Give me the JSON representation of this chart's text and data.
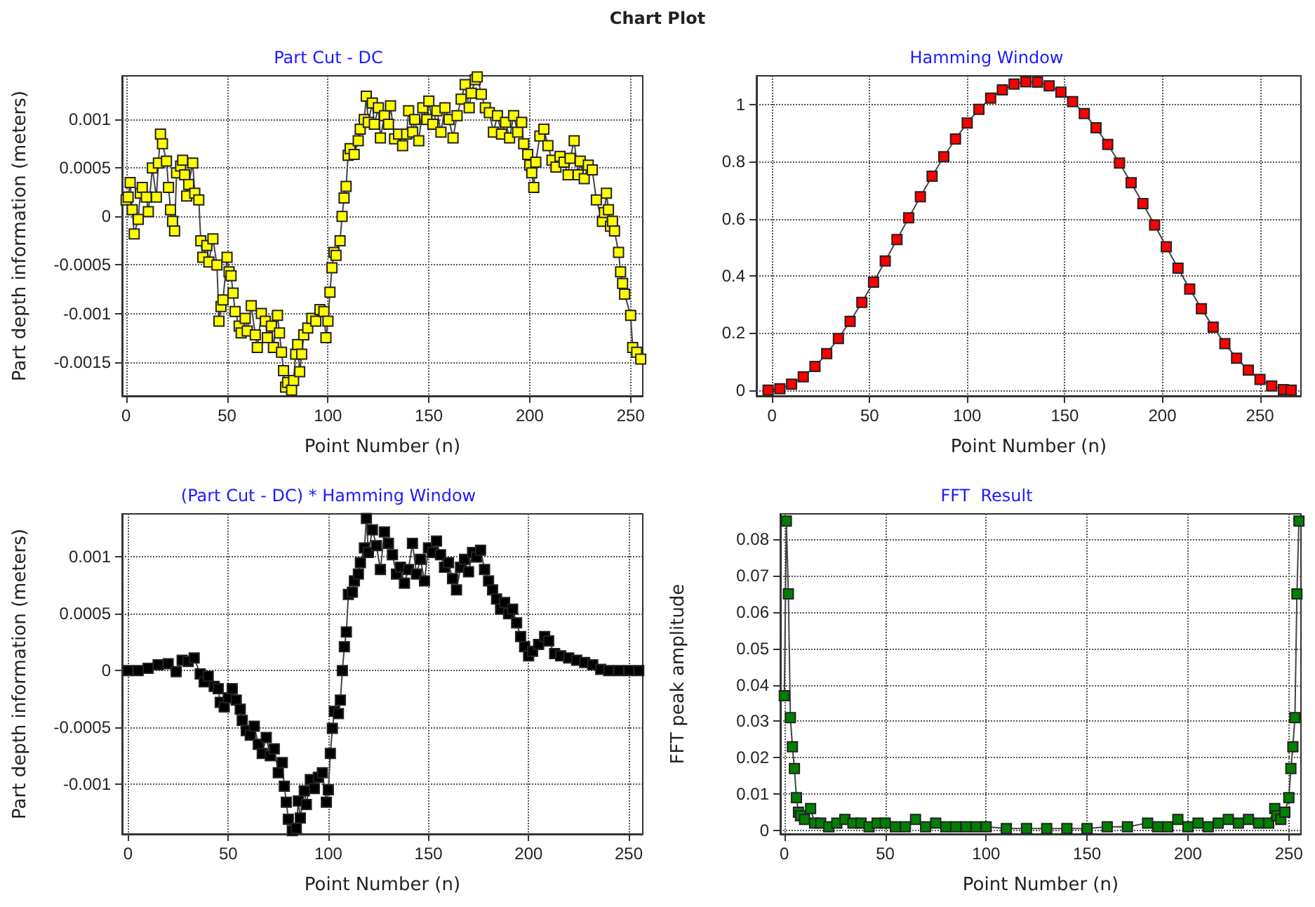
{
  "chart_data": [
    {
      "type": "line",
      "title": "Part Cut - DC",
      "xlabel": "Point Number (n)",
      "ylabel": "Part depth information (meters)",
      "annotations": [
        "Chart Plot"
      ],
      "marker": "square",
      "line_style": "solid",
      "grid": true,
      "xlim": [
        -2,
        256
      ],
      "xticks": [
        0,
        50,
        100,
        150,
        200,
        250
      ],
      "ylim": [
        -0.00185,
        0.00145
      ],
      "yticks": [
        -0.0015,
        -0.001,
        -0.0005,
        0,
        0.0005,
        0.001
      ],
      "series": [
        {
          "color": "#ffff00",
          "x": [
            0,
            1,
            2,
            3,
            4,
            6,
            7,
            8,
            10,
            11,
            13,
            15,
            16,
            17,
            18,
            20,
            21,
            22,
            23,
            24,
            25,
            27,
            28,
            29,
            30,
            31,
            33,
            34,
            36,
            37,
            38,
            40,
            41,
            43,
            45,
            46,
            47,
            48,
            50,
            51,
            52,
            53,
            54,
            56,
            57,
            59,
            60,
            62,
            64,
            65,
            67,
            69,
            70,
            72,
            73,
            75,
            76,
            77,
            78,
            79,
            80,
            82,
            83,
            84,
            85,
            86,
            87,
            88,
            90,
            92,
            94,
            96,
            98,
            99,
            100,
            101,
            102,
            103,
            104,
            106,
            107,
            108,
            109,
            110,
            111,
            113,
            115,
            116,
            118,
            119,
            120,
            122,
            123,
            125,
            126,
            128,
            130,
            131,
            133,
            135,
            137,
            139,
            140,
            142,
            143,
            145,
            147,
            149,
            150,
            152,
            154,
            156,
            158,
            160,
            162,
            164,
            166,
            168,
            170,
            171,
            173,
            174,
            176,
            178,
            180,
            182,
            184,
            186,
            188,
            190,
            192,
            194,
            196,
            197,
            199,
            200,
            201,
            202,
            203,
            205,
            207,
            209,
            211,
            213,
            215,
            217,
            219,
            220,
            222,
            224,
            225,
            227,
            229,
            231,
            233,
            236,
            237,
            238,
            239,
            240,
            241,
            242,
            244,
            245,
            246,
            247,
            250,
            251,
            253,
            255
          ],
          "values": [
            0.00017,
            0.0002,
            0.00035,
            7e-05,
            -0.00018,
            -3e-05,
            0.00024,
            0.0003,
            0.0002,
            5e-05,
            0.0005,
            0.0002,
            0.00055,
            0.00085,
            0.00075,
            0.00057,
            0.0003,
            7e-05,
            -5e-05,
            -0.00015,
            0.00045,
            0.00052,
            0.00058,
            0.00043,
            0.00021,
            0.00033,
            0.00055,
            0.00024,
            0.00017,
            -0.00025,
            -0.00042,
            -0.0003,
            -0.00047,
            -0.00023,
            -0.0005,
            -0.00108,
            -0.00093,
            -0.00086,
            -0.00042,
            -0.00057,
            -0.00061,
            -0.00079,
            -0.00098,
            -0.00113,
            -0.0012,
            -0.00105,
            -0.00118,
            -0.00092,
            -0.00122,
            -0.00135,
            -0.001,
            -0.00108,
            -0.00125,
            -0.00113,
            -0.00135,
            -0.00102,
            -0.0012,
            -0.0014,
            -0.00159,
            -0.00176,
            -0.00171,
            -0.00179,
            -0.00169,
            -0.00142,
            -0.00132,
            -0.0016,
            -0.00142,
            -0.00122,
            -0.00115,
            -0.00105,
            -0.00108,
            -0.00096,
            -0.00098,
            -0.00125,
            -0.00108,
            -0.00078,
            -0.00053,
            -0.00037,
            -0.0004,
            -0.00025,
            0,
            0.00019,
            0.00031,
            0.00063,
            0.0007,
            0.00064,
            0.00078,
            0.0009,
            0.001,
            0.00124,
            0.00097,
            0.00117,
            0.00095,
            0.00112,
            0.00081,
            0.00104,
            0.00095,
            0.00114,
            0.0008,
            0.00085,
            0.00073,
            0.00085,
            0.00109,
            0.00087,
            0.001,
            0.00078,
            0.00112,
            0.001,
            0.00119,
            0.00095,
            0.00109,
            0.00087,
            0.00112,
            0.001,
            0.00081,
            0.00104,
            0.00121,
            0.00136,
            0.00112,
            0.00127,
            0.00141,
            0.00144,
            0.00126,
            0.00112,
            0.00107,
            0.00087,
            0.00104,
            0.00085,
            0.00097,
            0.00081,
            0.00104,
            0.00087,
            0.00097,
            0.00075,
            0.00064,
            0.00053,
            0.00045,
            0.0003,
            0.00056,
            0.00083,
            0.0009,
            0.00073,
            0.00058,
            0.00051,
            0.00062,
            0.00056,
            0.00043,
            0.0006,
            0.00078,
            0.00043,
            0.00057,
            0.00039,
            0.00053,
            0.00048,
            0.00017,
            -5e-05,
            4e-05,
            0.00024,
            7e-05,
            -0.0001,
            -5e-05,
            -0.00015,
            -0.00037,
            -0.00057,
            -0.00069,
            -0.0008,
            -0.00102,
            -0.00135,
            -0.0014,
            -0.00147
          ]
        }
      ]
    },
    {
      "type": "line",
      "title": "Hamming Window",
      "xlabel": "Point Number (n)",
      "marker": "square",
      "line_style": "solid",
      "grid": true,
      "xlim": [
        -8,
        271
      ],
      "xticks": [
        0,
        50,
        100,
        150,
        200,
        250
      ],
      "ylim": [
        -0.02,
        1.1
      ],
      "yticks": [
        0,
        0.2,
        0.4,
        0.6,
        0.8,
        1
      ],
      "series": [
        {
          "color": "#ff0000",
          "x": [
            -2,
            4,
            10,
            16,
            22,
            28,
            34,
            40,
            46,
            52,
            58,
            64,
            70,
            76,
            82,
            88,
            94,
            100,
            106,
            112,
            118,
            124,
            130,
            136,
            142,
            148,
            154,
            160,
            166,
            172,
            178,
            184,
            190,
            196,
            202,
            208,
            214,
            220,
            226,
            232,
            238,
            244,
            250,
            256,
            262,
            266
          ],
          "values": [
            0,
            0.005,
            0.021,
            0.047,
            0.083,
            0.128,
            0.181,
            0.241,
            0.307,
            0.378,
            0.452,
            0.527,
            0.603,
            0.677,
            0.749,
            0.817,
            0.879,
            0.935,
            0.983,
            1.022,
            1.051,
            1.071,
            1.079,
            1.078,
            1.065,
            1.043,
            1.01,
            0.968,
            0.918,
            0.86,
            0.795,
            0.726,
            0.653,
            0.578,
            0.502,
            0.427,
            0.354,
            0.285,
            0.221,
            0.163,
            0.112,
            0.07,
            0.038,
            0.015,
            0.002,
            0
          ]
        }
      ]
    },
    {
      "type": "line",
      "title": "(Part Cut - DC) * Hamming Window",
      "xlabel": "Point Number (n)",
      "ylabel": "Part depth information (meters)",
      "marker": "square",
      "line_style": "solid",
      "grid": true,
      "xlim": [
        -3,
        257
      ],
      "xticks": [
        0,
        50,
        100,
        150,
        200,
        250
      ],
      "ylim": [
        -0.00144,
        0.00138
      ],
      "yticks": [
        -0.001,
        -0.0005,
        0,
        0.0005,
        0.001
      ],
      "series": [
        {
          "color": "#000000",
          "x": [
            0,
            5,
            10,
            15,
            20,
            24,
            27,
            30,
            33,
            36,
            38,
            40,
            43,
            45,
            46,
            48,
            50,
            52,
            54,
            56,
            57,
            59,
            61,
            63,
            65,
            67,
            69,
            71,
            73,
            75,
            77,
            78,
            79,
            80,
            82,
            84,
            85,
            86,
            88,
            89,
            91,
            93,
            95,
            97,
            99,
            100,
            101,
            102,
            103,
            105,
            106,
            107,
            108,
            109,
            110,
            112,
            113,
            115,
            116,
            118,
            119,
            120,
            122,
            124,
            126,
            128,
            130,
            132,
            134,
            136,
            138,
            140,
            142,
            144,
            146,
            148,
            150,
            152,
            154,
            156,
            158,
            160,
            162,
            164,
            166,
            168,
            170,
            172,
            174,
            176,
            178,
            180,
            182,
            184,
            186,
            188,
            190,
            192,
            194,
            196,
            198,
            200,
            202,
            205,
            208,
            210,
            213,
            216,
            220,
            224,
            228,
            232,
            236,
            240,
            245,
            250,
            255
          ],
          "values": [
            0,
            0,
            2e-05,
            5e-05,
            6e-05,
            -1e-05,
            9e-05,
            8e-05,
            0.00011,
            -3e-05,
            -0.0001,
            -5e-05,
            -0.00014,
            -0.00016,
            -0.00028,
            -0.00032,
            -0.00024,
            -0.00016,
            -0.00026,
            -0.00034,
            -0.00044,
            -0.00053,
            -0.00057,
            -0.00049,
            -0.00065,
            -0.00073,
            -0.00059,
            -0.00075,
            -0.00069,
            -0.0009,
            -0.00081,
            -0.00102,
            -0.00116,
            -0.00131,
            -0.00141,
            -0.00139,
            -0.00115,
            -0.0013,
            -0.00106,
            -0.00118,
            -0.00096,
            -0.00104,
            -0.00094,
            -0.0009,
            -0.00116,
            -0.00105,
            -0.00073,
            -0.00051,
            -0.00036,
            -0.00038,
            -0.00026,
            0,
            0.00021,
            0.00034,
            0.00067,
            0.00069,
            0.00079,
            0.00085,
            0.00095,
            0.00108,
            0.00134,
            0.00104,
            0.00124,
            0.0011,
            0.00089,
            0.00122,
            0.00112,
            0.00102,
            0.00085,
            0.00091,
            0.00077,
            0.00089,
            0.00112,
            0.00085,
            0.00098,
            0.00079,
            0.00108,
            0.00104,
            0.00114,
            0.00102,
            0.00091,
            0.00095,
            0.00081,
            0.00071,
            0.00091,
            0.00098,
            0.00087,
            0.00104,
            0.001,
            0.00106,
            0.00089,
            0.00079,
            0.00071,
            0.00063,
            0.00054,
            0.0006,
            0.0005,
            0.00054,
            0.00042,
            0.0003,
            0.00021,
            0.00013,
            0.00017,
            0.00023,
            0.0003,
            0.00026,
            0.00015,
            0.00013,
            0.00011,
            9e-05,
            7e-05,
            5e-05,
            1e-05,
            0,
            0,
            0,
            0
          ]
        }
      ]
    },
    {
      "type": "line",
      "title": "FFT  Result",
      "xlabel": "Point Number (n)",
      "ylabel": "FFT peak amplitude",
      "marker": "square",
      "line_style": "solid",
      "grid": true,
      "xlim": [
        -2,
        256
      ],
      "xticks": [
        0,
        50,
        100,
        150,
        200,
        250
      ],
      "ylim": [
        -0.001,
        0.087
      ],
      "yticks": [
        0,
        0.01,
        0.02,
        0.03,
        0.04,
        0.05,
        0.06,
        0.07,
        0.08
      ],
      "series": [
        {
          "color": "#008000",
          "x": [
            0,
            1,
            2,
            3,
            4,
            5,
            6,
            7,
            8,
            10,
            13,
            15,
            18,
            22,
            26,
            30,
            34,
            38,
            42,
            46,
            50,
            55,
            60,
            65,
            70,
            75,
            80,
            85,
            90,
            95,
            100,
            110,
            120,
            130,
            140,
            150,
            160,
            170,
            180,
            185,
            190,
            195,
            200,
            205,
            210,
            215,
            220,
            225,
            230,
            235,
            240,
            243,
            244,
            246,
            248,
            250,
            251,
            252,
            253,
            254,
            255
          ],
          "values": [
            0.037,
            0.085,
            0.065,
            0.031,
            0.023,
            0.017,
            0.009,
            0.005,
            0.004,
            0.003,
            0.006,
            0.002,
            0.002,
            0.001,
            0.002,
            0.003,
            0.002,
            0.002,
            0.001,
            0.002,
            0.002,
            0.001,
            0.001,
            0.003,
            0.001,
            0.002,
            0.001,
            0.001,
            0.001,
            0.001,
            0.001,
            0.0005,
            0.0005,
            0.0005,
            0.0005,
            0.0005,
            0.001,
            0.001,
            0.002,
            0.001,
            0.001,
            0.003,
            0.001,
            0.002,
            0.001,
            0.002,
            0.003,
            0.002,
            0.003,
            0.002,
            0.002,
            0.006,
            0.004,
            0.003,
            0.005,
            0.009,
            0.017,
            0.023,
            0.031,
            0.065,
            0.085
          ]
        }
      ]
    }
  ]
}
